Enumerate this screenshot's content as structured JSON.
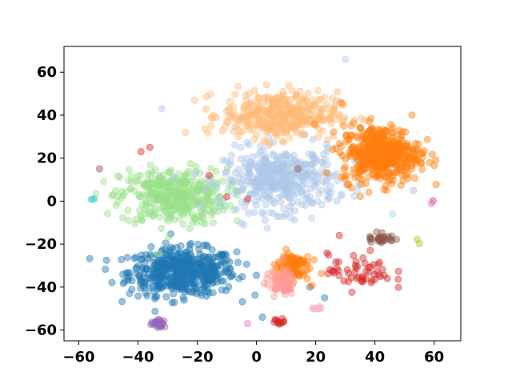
{
  "chart_data": {
    "type": "scatter",
    "title": "",
    "xlabel": "",
    "ylabel": "",
    "xlim": [
      -65,
      69
    ],
    "ylim": [
      -65,
      72
    ],
    "xticks": [
      -60,
      -40,
      -20,
      0,
      20,
      40,
      60
    ],
    "yticks": [
      -60,
      -40,
      -20,
      0,
      20,
      40,
      60
    ],
    "xtick_labels": [
      "−60",
      "−40",
      "−20",
      "0",
      "20",
      "40",
      "60"
    ],
    "ytick_labels": [
      "−60",
      "−40",
      "−20",
      "0",
      "20",
      "40",
      "60"
    ],
    "grid": false,
    "legend": "none",
    "marker_alpha": 0.45,
    "clusters": [
      {
        "color": "#1f77b4",
        "center": [
          -25,
          -33
        ],
        "spread": [
          15,
          9
        ],
        "count": 520
      },
      {
        "color": "#98df8a",
        "center": [
          -28,
          2
        ],
        "spread": [
          15,
          11
        ],
        "count": 380
      },
      {
        "color": "#aec7e8",
        "center": [
          8,
          10
        ],
        "spread": [
          16,
          12
        ],
        "count": 420
      },
      {
        "color": "#ffbb78",
        "center": [
          8,
          40
        ],
        "spread": [
          16,
          9
        ],
        "count": 380
      },
      {
        "color": "#ff7f0e",
        "center": [
          42,
          22
        ],
        "spread": [
          11,
          11
        ],
        "count": 460
      },
      {
        "color": "#ff7f0e",
        "center": [
          12,
          -30
        ],
        "spread": [
          5,
          6
        ],
        "count": 90
      },
      {
        "color": "#ff9896",
        "center": [
          8,
          -38
        ],
        "spread": [
          4,
          5
        ],
        "count": 60
      },
      {
        "color": "#d62728",
        "center": [
          35,
          -33
        ],
        "spread": [
          9,
          7
        ],
        "count": 55
      },
      {
        "color": "#8c564b",
        "center": [
          42,
          -17
        ],
        "spread": [
          4,
          3
        ],
        "count": 30
      },
      {
        "color": "#9467bd",
        "center": [
          -33,
          -57
        ],
        "spread": [
          2,
          1.5
        ],
        "count": 25
      },
      {
        "color": "#d62728",
        "center": [
          8,
          -56
        ],
        "spread": [
          2,
          1
        ],
        "count": 12
      },
      {
        "color": "#f7b6d2",
        "center": [
          20,
          -50
        ],
        "spread": [
          2,
          1
        ],
        "count": 10
      },
      {
        "color": "#e377c2",
        "center": [
          60,
          0
        ],
        "spread": [
          1,
          1
        ],
        "count": 3
      },
      {
        "color": "#bcbd22",
        "center": [
          55,
          -18
        ],
        "spread": [
          1,
          1
        ],
        "count": 2
      },
      {
        "color": "#17becf",
        "center": [
          -55,
          1
        ],
        "spread": [
          1,
          1
        ],
        "count": 2
      }
    ],
    "outlier_points": [
      {
        "x": 30,
        "y": 66,
        "color": "#aec7e8"
      },
      {
        "x": -32,
        "y": 43,
        "color": "#aec7e8"
      },
      {
        "x": -36,
        "y": 25,
        "color": "#d62728"
      },
      {
        "x": -39,
        "y": 23,
        "color": "#d62728"
      },
      {
        "x": -53,
        "y": 15,
        "color": "#8c564b"
      },
      {
        "x": -16,
        "y": 12,
        "color": "#d62728"
      },
      {
        "x": -10,
        "y": 2,
        "color": "#d62728"
      },
      {
        "x": -3,
        "y": 1,
        "color": "#d62728"
      },
      {
        "x": 14,
        "y": 15,
        "color": "#8c564b"
      },
      {
        "x": 28,
        "y": -16,
        "color": "#d62728"
      },
      {
        "x": 18,
        "y": -40,
        "color": "#8c564b"
      },
      {
        "x": 23,
        "y": -45,
        "color": "#1f77b4"
      },
      {
        "x": -3,
        "y": -57,
        "color": "#e377c2"
      },
      {
        "x": 2,
        "y": -54,
        "color": "#1f77b4"
      },
      {
        "x": 53,
        "y": 5,
        "color": "#c5b0d5"
      },
      {
        "x": 46,
        "y": -6,
        "color": "#9edae5"
      }
    ]
  }
}
